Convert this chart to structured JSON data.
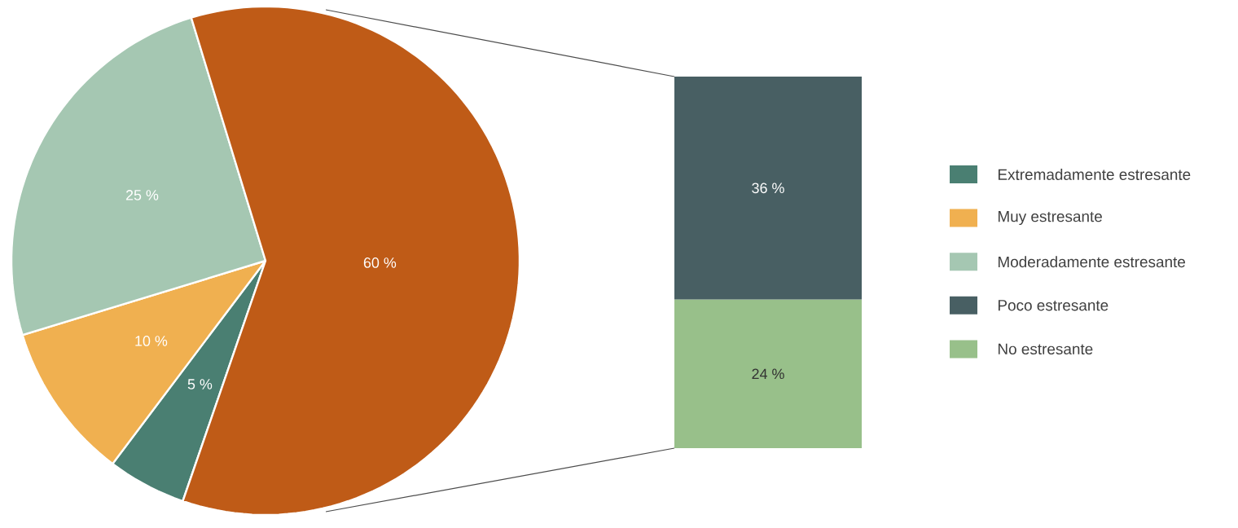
{
  "chart_data": [
    {
      "type": "pie",
      "categories": [
        "Extremadamente estresante",
        "Muy estresante",
        "Moderadamente estresante",
        null
      ],
      "values": [
        5,
        10,
        25,
        60
      ],
      "colors": [
        "#4a7f72",
        "#f0b050",
        "#a5c7b2",
        "#bf5b17"
      ],
      "value_labels": [
        "5 %",
        "10 %",
        "25 %",
        "60 %"
      ],
      "legend": "right"
    },
    {
      "type": "bar",
      "stacked": true,
      "categories": [
        null
      ],
      "series": [
        {
          "name": "No estresante",
          "color": "#98c08a",
          "values": [
            24
          ],
          "value_labels": [
            "24 %"
          ]
        },
        {
          "name": "Poco estresante",
          "color": "#485f63",
          "values": [
            36
          ],
          "value_labels": [
            "36 %"
          ]
        }
      ],
      "legend": "right"
    }
  ]
}
